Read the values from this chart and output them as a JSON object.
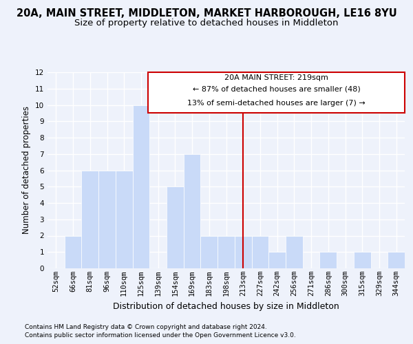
{
  "title": "20A, MAIN STREET, MIDDLETON, MARKET HARBOROUGH, LE16 8YU",
  "subtitle": "Size of property relative to detached houses in Middleton",
  "xlabel": "Distribution of detached houses by size in Middleton",
  "ylabel": "Number of detached properties",
  "categories": [
    "52sqm",
    "66sqm",
    "81sqm",
    "96sqm",
    "110sqm",
    "125sqm",
    "139sqm",
    "154sqm",
    "169sqm",
    "183sqm",
    "198sqm",
    "213sqm",
    "227sqm",
    "242sqm",
    "256sqm",
    "271sqm",
    "286sqm",
    "300sqm",
    "315sqm",
    "329sqm",
    "344sqm"
  ],
  "values": [
    0,
    2,
    6,
    6,
    6,
    10,
    0,
    5,
    7,
    2,
    2,
    2,
    2,
    1,
    2,
    0,
    1,
    0,
    1,
    0,
    1
  ],
  "bar_color": "#c9daf8",
  "bar_edgecolor": "#ffffff",
  "vline_color": "#cc0000",
  "vline_x_index": 11,
  "ylim": [
    0,
    12
  ],
  "yticks": [
    0,
    1,
    2,
    3,
    4,
    5,
    6,
    7,
    8,
    9,
    10,
    11,
    12
  ],
  "annotation_title": "20A MAIN STREET: 219sqm",
  "annotation_line1": "← 87% of detached houses are smaller (48)",
  "annotation_line2": "13% of semi-detached houses are larger (7) →",
  "annotation_box_color": "#cc0000",
  "footer1": "Contains HM Land Registry data © Crown copyright and database right 2024.",
  "footer2": "Contains public sector information licensed under the Open Government Licence v3.0.",
  "background_color": "#eef2fb",
  "grid_color": "#ffffff",
  "title_fontsize": 10.5,
  "subtitle_fontsize": 9.5,
  "ylabel_fontsize": 8.5,
  "xlabel_fontsize": 9,
  "tick_fontsize": 7.5,
  "footer_fontsize": 6.5
}
